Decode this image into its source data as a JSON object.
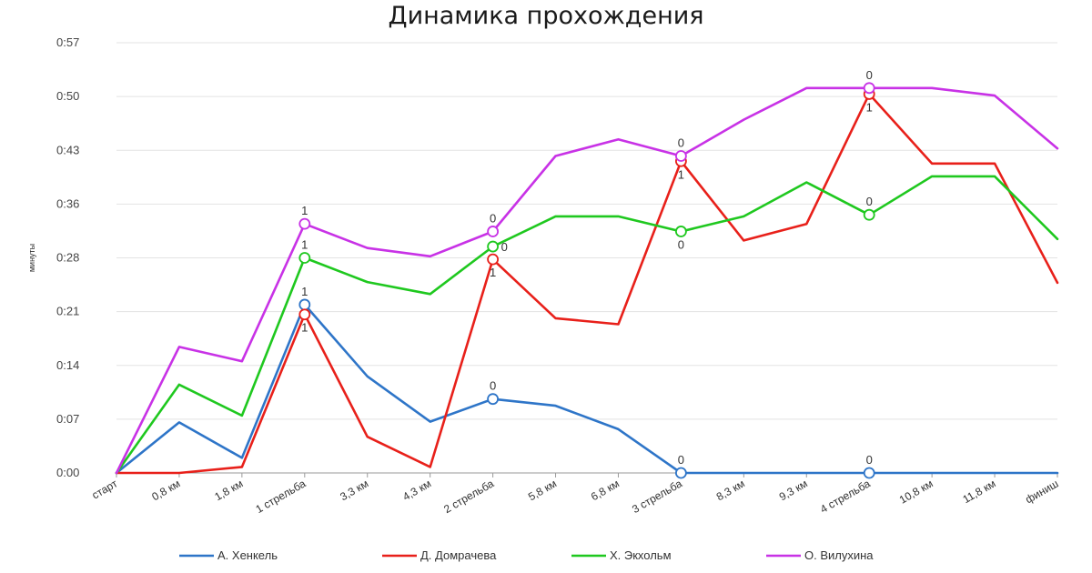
{
  "chart_data": {
    "type": "line",
    "title": "Динамика прохождения",
    "xlabel": "",
    "ylabel": "минуты",
    "categories": [
      "старт",
      "0,8 км",
      "1,8 км",
      "1 стрельба",
      "3,3 км",
      "4,3 км",
      "2 стрельба",
      "5,8 км",
      "6,8 км",
      "3 стрельба",
      "8,3 км",
      "9,3 км",
      "4 стрельба",
      "10,8 км",
      "11,8 км",
      "финиш"
    ],
    "y_ticks": [
      "0:00",
      "0:07",
      "0:14",
      "0:21",
      "0:28",
      "0:36",
      "0:43",
      "0:50",
      "0:57"
    ],
    "ylim": [
      0,
      57
    ],
    "grid": true,
    "legend_position": "bottom",
    "series": [
      {
        "name": "А. Хенкель",
        "color": "#2e75c8",
        "values": [
          0,
          6.7,
          2,
          22.3,
          12.8,
          6.8,
          9.8,
          8.9,
          5.8,
          0,
          0,
          0,
          0,
          0,
          0,
          0
        ],
        "markers": [
          {
            "index": 3,
            "label": "1",
            "label_pos": "above"
          },
          {
            "index": 6,
            "label": "0",
            "label_pos": "above"
          },
          {
            "index": 9,
            "label": "0",
            "label_pos": "above"
          },
          {
            "index": 12,
            "label": "0",
            "label_pos": "above"
          }
        ]
      },
      {
        "name": "Д. Домрачева",
        "color": "#e8201a",
        "values": [
          0,
          0,
          0.8,
          21,
          4.8,
          0.8,
          28.3,
          20.5,
          19.7,
          41.3,
          30.8,
          33,
          50.2,
          41,
          41,
          25.2
        ],
        "markers": [
          {
            "index": 3,
            "label": "1",
            "label_pos": "below"
          },
          {
            "index": 6,
            "label": "1",
            "label_pos": "below"
          },
          {
            "index": 9,
            "label": "1",
            "label_pos": "below"
          },
          {
            "index": 12,
            "label": "1",
            "label_pos": "below"
          }
        ]
      },
      {
        "name": "Х. Экхольм",
        "color": "#1fc81f",
        "values": [
          0,
          11.7,
          7.6,
          28.5,
          25.3,
          23.7,
          30,
          34,
          34,
          32,
          34,
          38.5,
          34.2,
          39.3,
          39.3,
          31
        ],
        "markers": [
          {
            "index": 3,
            "label": "1",
            "label_pos": "above"
          },
          {
            "index": 6,
            "label": "0",
            "label_pos": "right"
          },
          {
            "index": 9,
            "label": "0",
            "label_pos": "below"
          },
          {
            "index": 12,
            "label": "0",
            "label_pos": "above"
          }
        ]
      },
      {
        "name": "О. Вилухина",
        "color": "#c832e6",
        "values": [
          0,
          16.7,
          14.8,
          33,
          29.8,
          28.7,
          32,
          42,
          44.2,
          42,
          46.8,
          51,
          51,
          51,
          50,
          43
        ],
        "markers": [
          {
            "index": 3,
            "label": "1",
            "label_pos": "above"
          },
          {
            "index": 6,
            "label": "0",
            "label_pos": "above"
          },
          {
            "index": 9,
            "label": "0",
            "label_pos": "above"
          },
          {
            "index": 12,
            "label": "0",
            "label_pos": "above"
          }
        ]
      }
    ]
  }
}
